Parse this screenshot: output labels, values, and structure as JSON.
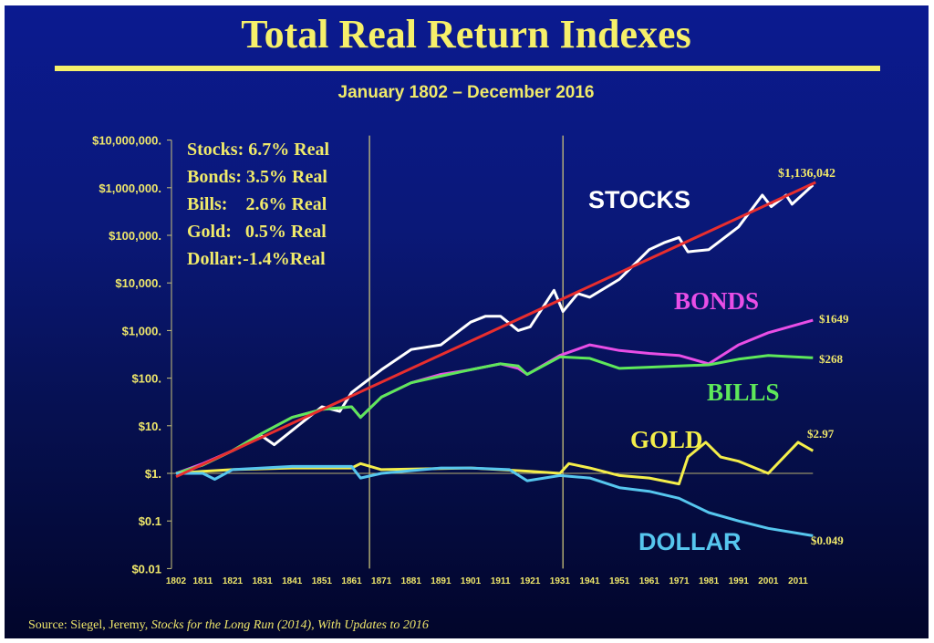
{
  "chart_data": {
    "type": "line",
    "title": "Total Real Return Indexes",
    "subtitle": "January 1802 – December 2016",
    "y_scale": "log",
    "ylim": [
      0.01,
      10000000
    ],
    "xlim": [
      1802,
      2016
    ],
    "y_ticks": [
      {
        "value": 10000000,
        "label": "$10,000,000."
      },
      {
        "value": 1000000,
        "label": "$1,000,000."
      },
      {
        "value": 100000,
        "label": "$100,000."
      },
      {
        "value": 10000,
        "label": "$10,000."
      },
      {
        "value": 1000,
        "label": "$1,000."
      },
      {
        "value": 100,
        "label": "$100."
      },
      {
        "value": 10,
        "label": "$10."
      },
      {
        "value": 1,
        "label": "$1."
      },
      {
        "value": 0.1,
        "label": "$0.1"
      },
      {
        "value": 0.01,
        "label": "$0.01"
      }
    ],
    "x_ticks": [
      "1802",
      "1811",
      "1821",
      "1831",
      "1841",
      "1851",
      "1861",
      "1871",
      "1881",
      "1891",
      "1901",
      "1911",
      "1921",
      "1931",
      "1941",
      "1951",
      "1961",
      "1971",
      "1981",
      "1991",
      "2001",
      "2011"
    ],
    "vertical_lines": [
      1867,
      1932
    ],
    "reference_line": 1,
    "stats": [
      "Stocks: 6.7% Real",
      "Bonds: 3.5% Real",
      "Bills:    2.6% Real",
      "Gold:   0.5% Real",
      "Dollar:-1.4%Real"
    ],
    "series": [
      {
        "name": "STOCKS",
        "color": "#ffffff",
        "end_label": "$1,136,042",
        "x": [
          1802,
          1811,
          1821,
          1831,
          1835,
          1841,
          1851,
          1857,
          1861,
          1871,
          1881,
          1891,
          1901,
          1906,
          1911,
          1917,
          1921,
          1929,
          1932,
          1937,
          1941,
          1951,
          1961,
          1966,
          1971,
          1974,
          1981,
          1991,
          1999,
          2002,
          2007,
          2009,
          2016
        ],
        "y": [
          1,
          1.5,
          3,
          6,
          4,
          8,
          25,
          20,
          50,
          150,
          400,
          500,
          1500,
          2000,
          2000,
          1000,
          1200,
          7000,
          2500,
          6000,
          5000,
          12000,
          50000,
          70000,
          90000,
          45000,
          50000,
          150000,
          700000,
          400000,
          700000,
          450000,
          1136042
        ]
      },
      {
        "name": "BONDS",
        "color": "#e84ee6",
        "end_label": "$1649",
        "x": [
          1802,
          1811,
          1821,
          1831,
          1841,
          1851,
          1861,
          1864,
          1871,
          1881,
          1891,
          1901,
          1911,
          1917,
          1920,
          1931,
          1941,
          1951,
          1961,
          1971,
          1981,
          1991,
          2001,
          2016
        ],
        "y": [
          1,
          1.6,
          3,
          7,
          15,
          22,
          25,
          15,
          40,
          80,
          120,
          150,
          200,
          160,
          120,
          300,
          500,
          380,
          330,
          300,
          200,
          500,
          900,
          1649
        ]
      },
      {
        "name": "BILLS",
        "color": "#5ee85a",
        "end_label": "$268",
        "x": [
          1802,
          1811,
          1821,
          1831,
          1841,
          1851,
          1861,
          1864,
          1871,
          1881,
          1891,
          1901,
          1911,
          1917,
          1920,
          1931,
          1941,
          1951,
          1961,
          1971,
          1981,
          1991,
          2001,
          2016
        ],
        "y": [
          1,
          1.5,
          3,
          7,
          15,
          22,
          25,
          15,
          40,
          80,
          110,
          150,
          200,
          180,
          120,
          280,
          260,
          160,
          170,
          180,
          190,
          250,
          300,
          268
        ]
      },
      {
        "name": "GOLD",
        "color": "#f4ee4a",
        "end_label": "$2.97",
        "x": [
          1802,
          1811,
          1821,
          1841,
          1861,
          1864,
          1871,
          1901,
          1921,
          1931,
          1934,
          1941,
          1951,
          1961,
          1971,
          1974,
          1980,
          1985,
          1991,
          2001,
          2011,
          2016
        ],
        "y": [
          1,
          1.1,
          1.2,
          1.3,
          1.3,
          1.6,
          1.2,
          1.3,
          1.1,
          1.0,
          1.6,
          1.3,
          0.9,
          0.8,
          0.6,
          2.2,
          4.5,
          2.2,
          1.8,
          1.0,
          4.5,
          2.97
        ]
      },
      {
        "name": "DOLLAR",
        "color": "#56c6ee",
        "end_label": "$0.049",
        "x": [
          1802,
          1811,
          1815,
          1821,
          1841,
          1861,
          1864,
          1871,
          1891,
          1901,
          1914,
          1920,
          1931,
          1941,
          1951,
          1961,
          1971,
          1981,
          1991,
          2001,
          2016
        ],
        "y": [
          1,
          1.0,
          0.75,
          1.2,
          1.4,
          1.4,
          0.8,
          1.0,
          1.3,
          1.3,
          1.2,
          0.7,
          0.9,
          0.8,
          0.5,
          0.42,
          0.3,
          0.15,
          0.1,
          0.07,
          0.049
        ]
      }
    ],
    "trend": {
      "color": "#e82e2e",
      "x": [
        1802,
        2016
      ],
      "y": [
        0.85,
        1136042
      ]
    }
  },
  "source": {
    "prefix": "Source: Siegel, Jeremy, ",
    "italic": "Stocks for the Long Run (2014), With Updates to 2016"
  }
}
